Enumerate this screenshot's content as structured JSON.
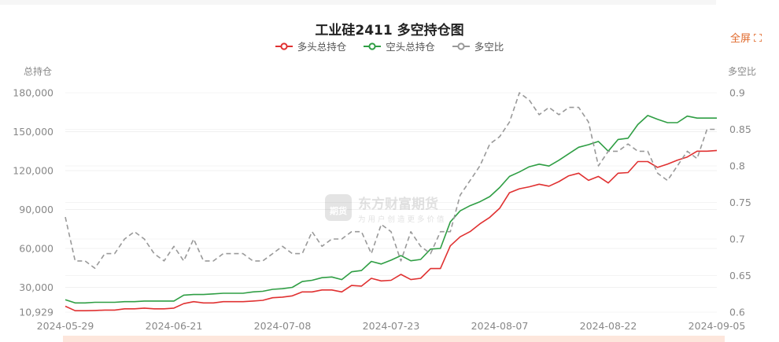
{
  "header": {
    "title": "工业硅2411 多空持仓图",
    "fullscreen_label": "全屏"
  },
  "legend": [
    {
      "label": "多头总持仓",
      "color": "#e03131"
    },
    {
      "label": "空头总持仓",
      "color": "#2f9e44"
    },
    {
      "label": "多空比",
      "color": "#999999"
    }
  ],
  "axes": {
    "left_title": "总持仓",
    "right_title": "多空比"
  },
  "watermark": {
    "brand": "东方财富期货",
    "slogan": "为用户创造更多价值",
    "logo_text": "期货"
  },
  "chart_data": {
    "type": "line",
    "title": "工业硅2411 多空持仓图",
    "xlabel": "",
    "ylabel": "总持仓",
    "ylabel_right": "多空比",
    "ylim": [
      10929,
      180000
    ],
    "ylim_right": [
      0.6,
      0.9
    ],
    "yticks": [
      "10,929",
      "30,000",
      "60,000",
      "90,000",
      "120,000",
      "150,000",
      "180,000"
    ],
    "yticks_right": [
      "0.6",
      "0.65",
      "0.7",
      "0.75",
      "0.8",
      "0.85",
      "0.9"
    ],
    "xtick_labels": [
      {
        "index": 0,
        "label": "2024-05-29"
      },
      {
        "index": 11,
        "label": "2024-06-21"
      },
      {
        "index": 22,
        "label": "2024-07-08"
      },
      {
        "index": 33,
        "label": "2024-07-23"
      },
      {
        "index": 44,
        "label": "2024-08-07"
      },
      {
        "index": 55,
        "label": "2024-08-22"
      },
      {
        "index": 66,
        "label": "2024-09-05"
      }
    ],
    "grid": true,
    "legend_position": "top",
    "series": [
      {
        "name": "多头总持仓",
        "axis": "left",
        "color": "#e03131",
        "values": [
          15500,
          12000,
          12000,
          12200,
          12500,
          12500,
          13500,
          13500,
          14000,
          13500,
          13500,
          14000,
          17500,
          19000,
          18000,
          18000,
          19000,
          19000,
          19000,
          19500,
          20000,
          22000,
          22500,
          23500,
          26500,
          26500,
          28000,
          28000,
          26500,
          31500,
          31000,
          37000,
          35000,
          35500,
          40000,
          36000,
          37000,
          44500,
          44500,
          62000,
          69000,
          73000,
          79000,
          84000,
          91000,
          103000,
          106000,
          107500,
          109500,
          108000,
          111500,
          116000,
          118000,
          112500,
          115500,
          110500,
          118000,
          118500,
          127000,
          127000,
          122500,
          125000,
          128000,
          130500,
          135000,
          135000,
          135500
        ]
      },
      {
        "name": "空头总持仓",
        "axis": "left",
        "color": "#2f9e44",
        "values": [
          20500,
          18000,
          18000,
          18500,
          18500,
          18500,
          19000,
          19000,
          19500,
          19500,
          19500,
          19500,
          24000,
          24500,
          24500,
          25000,
          25500,
          25500,
          25500,
          26500,
          27000,
          28500,
          29000,
          30000,
          34500,
          35500,
          37500,
          38000,
          36000,
          42000,
          43000,
          50000,
          48000,
          51000,
          54500,
          50500,
          51500,
          59500,
          60000,
          80500,
          89000,
          93000,
          96000,
          100000,
          107000,
          115500,
          119000,
          123000,
          125000,
          123500,
          128000,
          133000,
          138000,
          140000,
          142500,
          135000,
          144000,
          145000,
          155500,
          162500,
          159500,
          157000,
          157000,
          162000,
          160500,
          160500,
          160500
        ]
      },
      {
        "name": "多空比",
        "axis": "right",
        "color": "#999999",
        "dashed": true,
        "values": [
          0.73,
          0.67,
          0.67,
          0.66,
          0.68,
          0.68,
          0.7,
          0.71,
          0.7,
          0.68,
          0.67,
          0.69,
          0.67,
          0.7,
          0.67,
          0.67,
          0.68,
          0.68,
          0.68,
          0.67,
          0.67,
          0.68,
          0.69,
          0.68,
          0.68,
          0.71,
          0.69,
          0.7,
          0.7,
          0.71,
          0.71,
          0.68,
          0.72,
          0.71,
          0.67,
          0.71,
          0.69,
          0.68,
          0.71,
          0.71,
          0.76,
          0.78,
          0.8,
          0.83,
          0.84,
          0.86,
          0.9,
          0.89,
          0.87,
          0.88,
          0.87,
          0.88,
          0.88,
          0.86,
          0.8,
          0.82,
          0.82,
          0.83,
          0.82,
          0.82,
          0.79,
          0.78,
          0.8,
          0.82,
          0.81,
          0.85,
          0.85
        ]
      }
    ]
  }
}
